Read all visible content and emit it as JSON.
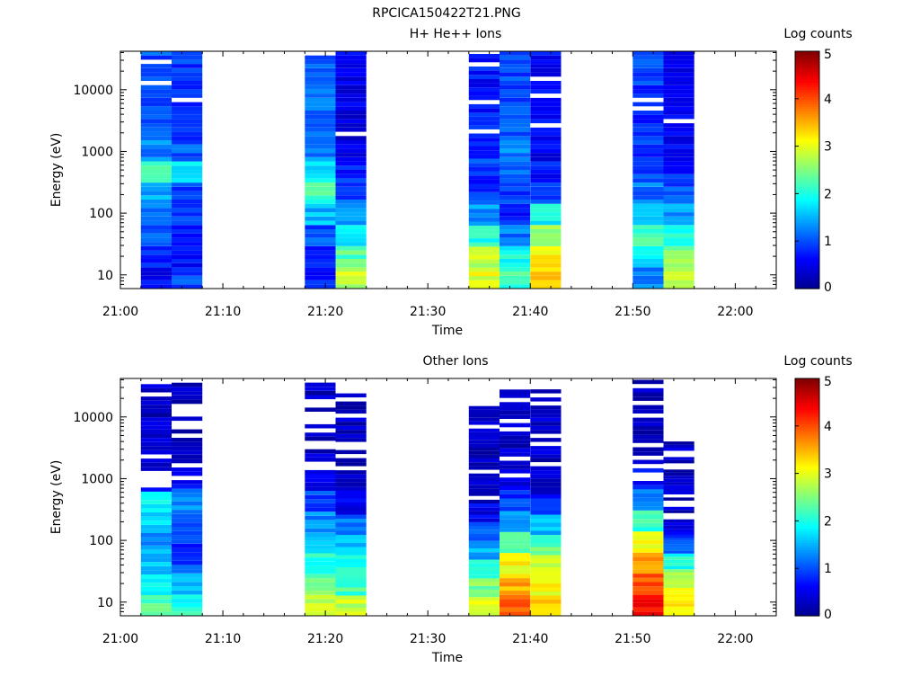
{
  "figure_title": "RPCICA150422T21.PNG",
  "colormap": [
    "#00008f",
    "#0000ff",
    "#007fff",
    "#00ffff",
    "#7fff7f",
    "#ffff00",
    "#ff7f00",
    "#ff0000",
    "#7f0000"
  ],
  "chart_data": [
    {
      "type": "heatmap",
      "title": "H+ He++ Ions",
      "xlabel": "Time",
      "ylabel": "Energy (eV)",
      "y_scale": "log",
      "ylim": [
        6,
        42000
      ],
      "xlim_minutes": [
        0,
        64
      ],
      "x_ticks": [
        "21:00",
        "21:10",
        "21:20",
        "21:30",
        "21:40",
        "21:50",
        "22:00"
      ],
      "y_ticks": [
        "10",
        "100",
        "1000",
        "10000"
      ],
      "colorbar": {
        "label": "Log counts",
        "range": [
          0,
          5
        ],
        "ticks": [
          "0",
          "1",
          "2",
          "3",
          "4",
          "5"
        ]
      },
      "columns": [
        {
          "start": "21:02",
          "end": "21:05",
          "low": [
            0.6,
            0.8,
            1.0,
            1.2,
            1.5,
            2.2,
            1.3
          ],
          "high": 1.0,
          "top": 42000
        },
        {
          "start": "21:05",
          "end": "21:08",
          "low": [
            1.0,
            0.7,
            0.8,
            0.9,
            1.0,
            1.7,
            1.1
          ],
          "high": 0.9,
          "top": 42000
        },
        {
          "start": "21:18",
          "end": "21:21",
          "low": [
            0.8,
            0.9,
            1.0,
            1.5,
            2.2,
            1.8,
            1.3
          ],
          "high": 1.1,
          "top": 42000
        },
        {
          "start": "21:21",
          "end": "21:24",
          "low": [
            2.8,
            2.3,
            1.7,
            1.4,
            1.0,
            0.8,
            0.6
          ],
          "high": 0.5,
          "top": 42000
        },
        {
          "start": "21:34",
          "end": "21:37",
          "low": [
            3.0,
            2.8,
            2.0,
            1.4,
            0.9,
            0.8,
            0.9
          ],
          "high": 0.7,
          "top": 38000
        },
        {
          "start": "21:37",
          "end": "21:40",
          "low": [
            2.2,
            2.0,
            1.2,
            0.8,
            0.9,
            1.2,
            1.3
          ],
          "high": 1.0,
          "top": 42000
        },
        {
          "start": "21:40",
          "end": "21:43",
          "low": [
            3.3,
            3.2,
            2.7,
            1.9,
            0.9,
            0.7,
            0.6
          ],
          "high": 0.6,
          "top": 42000
        },
        {
          "start": "21:50",
          "end": "21:53",
          "low": [
            1.2,
            1.8,
            2.2,
            1.7,
            1.2,
            0.9,
            0.9
          ],
          "high": 0.9,
          "top": 42000
        },
        {
          "start": "21:53",
          "end": "21:56",
          "low": [
            2.8,
            2.6,
            2.0,
            1.4,
            1.0,
            0.8,
            0.7
          ],
          "high": 0.6,
          "top": 42000
        }
      ]
    },
    {
      "type": "heatmap",
      "title": "Other Ions",
      "xlabel": "Time",
      "ylabel": "Energy (eV)",
      "y_scale": "log",
      "ylim": [
        6,
        42000
      ],
      "xlim_minutes": [
        0,
        64
      ],
      "x_ticks": [
        "21:00",
        "21:10",
        "21:20",
        "21:30",
        "21:40",
        "21:50",
        "22:00"
      ],
      "y_ticks": [
        "10",
        "100",
        "1000",
        "10000"
      ],
      "colorbar": {
        "label": "Log counts",
        "range": [
          0,
          5
        ],
        "ticks": [
          "0",
          "1",
          "2",
          "3",
          "4",
          "5"
        ]
      },
      "columns": [
        {
          "start": "21:02",
          "end": "21:05",
          "low": [
            2.3,
            2.0,
            1.6,
            1.4,
            1.6,
            1.8,
            0.8
          ],
          "high": 0.3,
          "top": 34000
        },
        {
          "start": "21:05",
          "end": "21:08",
          "low": [
            2.0,
            1.5,
            1.0,
            0.9,
            1.1,
            1.3,
            0.6
          ],
          "high": 0.3,
          "top": 42000
        },
        {
          "start": "21:18",
          "end": "21:21",
          "low": [
            2.9,
            2.5,
            2.0,
            1.7,
            1.3,
            1.0,
            0.5
          ],
          "high": 0.3,
          "top": 36000
        },
        {
          "start": "21:21",
          "end": "21:24",
          "low": [
            2.8,
            2.2,
            1.9,
            1.6,
            1.2,
            0.6,
            0.4
          ],
          "high": 0.3,
          "top": 28000
        },
        {
          "start": "21:34",
          "end": "21:37",
          "low": [
            2.9,
            2.5,
            2.0,
            1.5,
            1.1,
            0.5,
            0.2
          ],
          "high": 0.3,
          "top": 15000
        },
        {
          "start": "21:37",
          "end": "21:40",
          "low": [
            3.8,
            3.5,
            3.1,
            2.3,
            1.5,
            0.9,
            0.4
          ],
          "high": 0.3,
          "top": 38000
        },
        {
          "start": "21:40",
          "end": "21:43",
          "low": [
            3.3,
            3.1,
            2.9,
            2.3,
            1.5,
            0.8,
            0.3
          ],
          "high": 0.3,
          "top": 28000
        },
        {
          "start": "21:50",
          "end": "21:53",
          "low": [
            4.3,
            4.0,
            3.6,
            3.0,
            2.1,
            1.2,
            0.6
          ],
          "high": 0.3,
          "top": 40000
        },
        {
          "start": "21:53",
          "end": "21:56",
          "low": [
            3.2,
            3.0,
            2.6,
            2.0,
            1.2,
            0.6,
            0.3
          ],
          "high": 0.3,
          "top": 4000
        }
      ]
    }
  ]
}
